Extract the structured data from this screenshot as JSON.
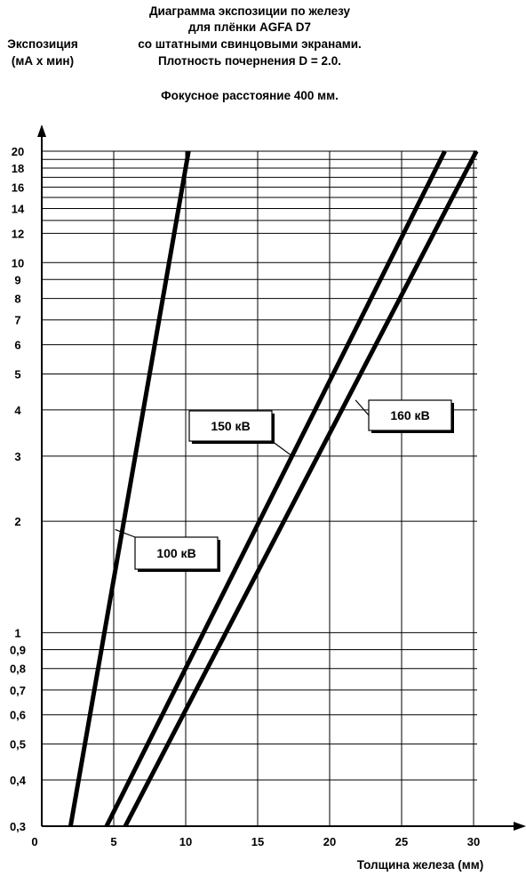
{
  "chart_data": {
    "type": "line",
    "title_lines": [
      "Диаграмма экспозиции по железу",
      "для плёнки AGFA D7",
      "со штатными свинцовыми экранами.",
      "Плотность почернения D = 2.0."
    ],
    "subtitle": "Фокусное расстояние 400 мм.",
    "ylabel_lines": [
      "Экспозиция",
      "(мА х мин)"
    ],
    "xlabel": "Толщина железа (мм)",
    "x_scale": "linear",
    "y_scale": "log",
    "xlim": [
      0,
      30
    ],
    "ylim": [
      0.3,
      20
    ],
    "grid": true,
    "x_ticks": [
      {
        "value": 0,
        "label": "0"
      },
      {
        "value": 5,
        "label": "5"
      },
      {
        "value": 10,
        "label": "10"
      },
      {
        "value": 15,
        "label": "15"
      },
      {
        "value": 20,
        "label": "20"
      },
      {
        "value": 25,
        "label": "25"
      },
      {
        "value": 30,
        "label": "30"
      }
    ],
    "y_ticks": [
      {
        "value": 0.3,
        "label": "0,3"
      },
      {
        "value": 0.4,
        "label": "0,4"
      },
      {
        "value": 0.5,
        "label": "0,5"
      },
      {
        "value": 0.6,
        "label": "0,6"
      },
      {
        "value": 0.7,
        "label": "0,7"
      },
      {
        "value": 0.8,
        "label": "0,8"
      },
      {
        "value": 0.9,
        "label": "0,9"
      },
      {
        "value": 1,
        "label": "1"
      },
      {
        "value": 2,
        "label": "2"
      },
      {
        "value": 3,
        "label": "3"
      },
      {
        "value": 4,
        "label": "4"
      },
      {
        "value": 5,
        "label": "5"
      },
      {
        "value": 6,
        "label": "6"
      },
      {
        "value": 7,
        "label": "7"
      },
      {
        "value": 8,
        "label": "8"
      },
      {
        "value": 9,
        "label": "9"
      },
      {
        "value": 10,
        "label": "10"
      },
      {
        "value": 12,
        "label": "12"
      },
      {
        "value": 14,
        "label": "14"
      },
      {
        "value": 16,
        "label": "16"
      },
      {
        "value": 18,
        "label": "18"
      },
      {
        "value": 20,
        "label": "20"
      }
    ],
    "y_unlabeled_gridlines": [
      13,
      15,
      17,
      19
    ],
    "series": [
      {
        "name": "100 кВ",
        "points": [
          [
            2.0,
            0.3
          ],
          [
            10.2,
            20
          ]
        ],
        "label_anchor": [
          5.1,
          1.9
        ]
      },
      {
        "name": "150 кВ",
        "points": [
          [
            4.5,
            0.3
          ],
          [
            28.0,
            20
          ]
        ],
        "label_anchor": [
          17.4,
          3.0
        ]
      },
      {
        "name": "160 кВ",
        "points": [
          [
            5.8,
            0.3
          ],
          [
            30.2,
            20
          ]
        ],
        "label_anchor": [
          21.8,
          4.25
        ]
      }
    ]
  }
}
